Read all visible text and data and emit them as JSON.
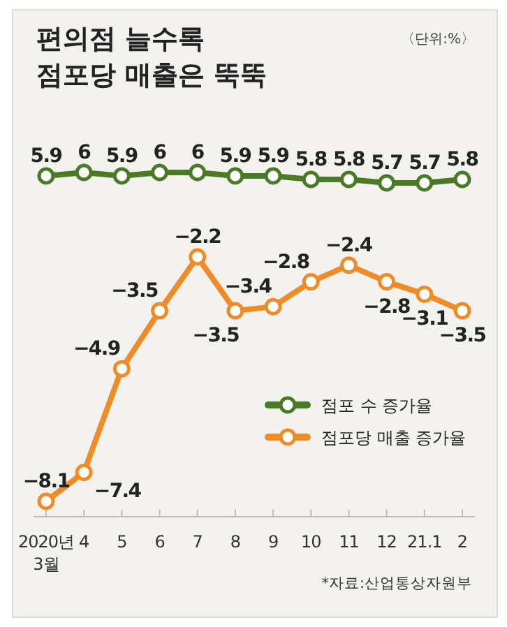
{
  "chart_data": [
    {
      "type": "line",
      "title": "편의점 늘수록\n점포당 매출은 뚝뚝",
      "subtitle": "〈단위:%〉",
      "categories": [
        null,
        null,
        null,
        null,
        null,
        null,
        null,
        null,
        null,
        null,
        null,
        null
      ],
      "series": [
        {
          "name": "점포 수 증가율",
          "color": "#4a7a26",
          "values": [
            5.9,
            6,
            5.9,
            6,
            6,
            5.9,
            5.9,
            5.8,
            5.8,
            5.7,
            5.7,
            5.8
          ]
        }
      ],
      "data_labels": true,
      "marker": "circle",
      "legend": "right"
    },
    {
      "type": "line",
      "categories": [
        "2020년\n3월",
        "4",
        "5",
        "6",
        "7",
        "8",
        "9",
        "10",
        "11",
        "12",
        "21.1",
        "2"
      ],
      "series": [
        {
          "name": "점포당 매출 증가율",
          "color": "#f08c28",
          "values": [
            -8.1,
            -7.4,
            -4.9,
            -3.5,
            -2.2,
            -3.5,
            -3.4,
            -2.8,
            -2.4,
            -2.8,
            -3.1,
            -3.5
          ]
        }
      ],
      "tick_labels": "x",
      "data_labels": true,
      "marker": "circle",
      "legend": "right",
      "annotations": [
        "*자료:산업통상자원부"
      ]
    }
  ]
}
